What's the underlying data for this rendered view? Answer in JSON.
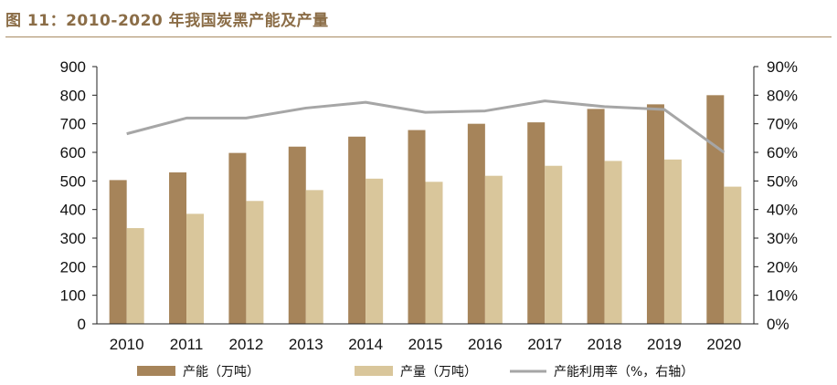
{
  "header": {
    "title": "图 11：2010-2020 年我国炭黑产能及产量"
  },
  "chart_data": {
    "type": "bar",
    "title": "图 11：2010-2020 年我国炭黑产能及产量",
    "categories": [
      "2010",
      "2011",
      "2012",
      "2013",
      "2014",
      "2015",
      "2016",
      "2017",
      "2018",
      "2019",
      "2020"
    ],
    "series": [
      {
        "name": "产能（万吨）",
        "type": "bar",
        "axis": "left",
        "color": "#a6845a",
        "values": [
          503,
          530,
          598,
          620,
          655,
          678,
          700,
          705,
          752,
          768,
          800
        ]
      },
      {
        "name": "产量（万吨）",
        "type": "bar",
        "axis": "left",
        "color": "#d9c69b",
        "values": [
          335,
          385,
          430,
          468,
          508,
          497,
          518,
          553,
          570,
          575,
          480
        ]
      },
      {
        "name": "产能利用率（%，右轴）",
        "type": "line",
        "axis": "right",
        "color": "#a6a6a6",
        "values": [
          66.5,
          72,
          72,
          75.5,
          77.5,
          74,
          74.5,
          78,
          76,
          75,
          60
        ]
      }
    ],
    "left_axis": {
      "ylim": [
        0,
        900
      ],
      "ticks": [
        "0",
        "100",
        "200",
        "300",
        "400",
        "500",
        "600",
        "700",
        "800",
        "900"
      ]
    },
    "right_axis": {
      "ylim": [
        0,
        90
      ],
      "ticks": [
        "0%",
        "10%",
        "20%",
        "30%",
        "40%",
        "50%",
        "60%",
        "70%",
        "80%",
        "90%"
      ]
    },
    "xlabel": "",
    "ylabel": "",
    "grid": false,
    "legend_position": "bottom"
  }
}
